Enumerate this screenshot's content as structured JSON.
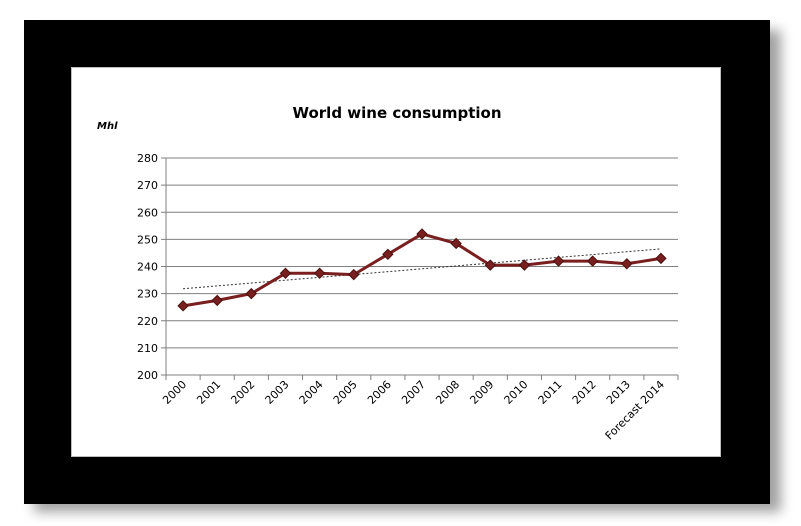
{
  "chart_data": {
    "type": "line",
    "title": "World wine consumption",
    "ylabel": "Mhl",
    "xlabel": "",
    "categories": [
      "2000",
      "2001",
      "2002",
      "2003",
      "2004",
      "2005",
      "2006",
      "2007",
      "2008",
      "2009",
      "2010",
      "2011",
      "2012",
      "2013",
      "Forecast 2014"
    ],
    "series": [
      {
        "values": [
          225.5,
          227.5,
          230,
          237.5,
          237.5,
          237,
          244.5,
          252,
          248.5,
          240.5,
          240.5,
          242,
          242,
          241,
          243
        ]
      }
    ],
    "trendline": {
      "style": "dotted",
      "start": 231.8,
      "end": 246.5
    },
    "ylim": [
      200,
      280
    ],
    "yticks": [
      200,
      210,
      220,
      230,
      240,
      250,
      260,
      270,
      280
    ],
    "grid": "horizontal",
    "legend": "none",
    "colors": {
      "line": "#7a1f1f",
      "marker": "#7a1f1f",
      "grid": "#7f7f7f",
      "trend": "#333333"
    }
  }
}
